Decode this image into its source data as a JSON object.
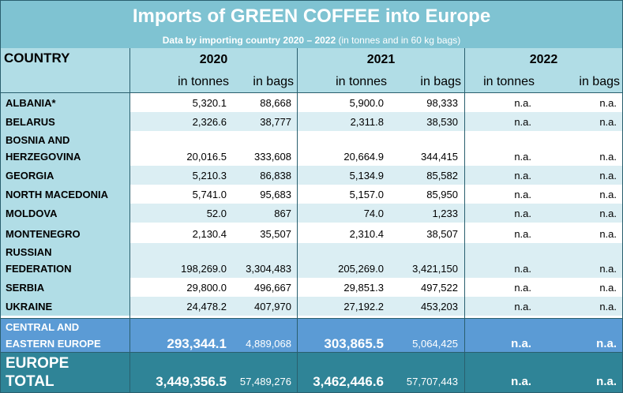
{
  "title": "Imports of GREEN COFFEE into Europe",
  "subtitle_bold": "Data by importing country 2020 – 2022",
  "subtitle_rest": " (in tonnes and in 60 kg bags)",
  "headers": {
    "country": "COUNTRY",
    "years": [
      "2020",
      "2021",
      "2022"
    ],
    "units": [
      "in tonnes",
      "in bags",
      "in tonnes",
      "in bags",
      "in tonnes",
      "in bags"
    ]
  },
  "rows": [
    {
      "country": [
        "ALBANIA*"
      ],
      "values": [
        "5,320.1",
        "88,668",
        "5,900.0",
        "98,333",
        "n.a.",
        "n.a."
      ]
    },
    {
      "country": [
        "BELARUS"
      ],
      "values": [
        "2,326.6",
        "38,777",
        "2,311.8",
        "38,530",
        "n.a.",
        "n.a."
      ]
    },
    {
      "country": [
        "BOSNIA AND",
        "HERZEGOVINA"
      ],
      "values": [
        "20,016.5",
        "333,608",
        "20,664.9",
        "344,415",
        "n.a.",
        "n.a."
      ]
    },
    {
      "country": [
        "GEORGIA"
      ],
      "values": [
        "5,210.3",
        "86,838",
        "5,134.9",
        "85,582",
        "n.a.",
        "n.a."
      ]
    },
    {
      "country": [
        "NORTH MACEDONIA"
      ],
      "values": [
        "5,741.0",
        "95,683",
        "5,157.0",
        "85,950",
        "n.a.",
        "n.a."
      ]
    },
    {
      "country": [
        "MOLDOVA"
      ],
      "values": [
        "52.0",
        "867",
        "74.0",
        "1,233",
        "n.a.",
        "n.a."
      ]
    },
    {
      "country": [
        "MONTENEGRO"
      ],
      "values": [
        "2,130.4",
        "35,507",
        "2,310.4",
        "38,507",
        "n.a.",
        "n.a."
      ]
    },
    {
      "country": [
        "RUSSIAN",
        "FEDERATION"
      ],
      "values": [
        "198,269.0",
        "3,304,483",
        "205,269.0",
        "3,421,150",
        "n.a.",
        "n.a."
      ]
    },
    {
      "country": [
        "SERBIA"
      ],
      "values": [
        "29,800.0",
        "496,667",
        "29,851.3",
        "497,522",
        "n.a.",
        "n.a."
      ]
    },
    {
      "country": [
        "UKRAINE"
      ],
      "values": [
        "24,478.2",
        "407,970",
        "27,192.2",
        "453,203",
        "n.a.",
        "n.a."
      ]
    }
  ],
  "cee": {
    "label": [
      "CENTRAL AND",
      "EASTERN EUROPE"
    ],
    "values": [
      "293,344.1",
      "4,889,068",
      "303,865.5",
      "5,064,425",
      "n.a.",
      "n.a."
    ]
  },
  "europe": {
    "label": [
      "EUROPE",
      "TOTAL"
    ],
    "values": [
      "3,449,356.5",
      "57,489,276",
      "3,462,446.6",
      "57,707,443",
      "n.a.",
      "n.a."
    ]
  },
  "colors": {
    "header_bg": "#7fc3d2",
    "subheader_bg": "#b1dde6",
    "stripe": "#dbeef3",
    "country_col": "#b1dde6",
    "cee_bg": "#5b9bd5",
    "europe_bg": "#2f8497",
    "border": "#2a5f6e"
  }
}
